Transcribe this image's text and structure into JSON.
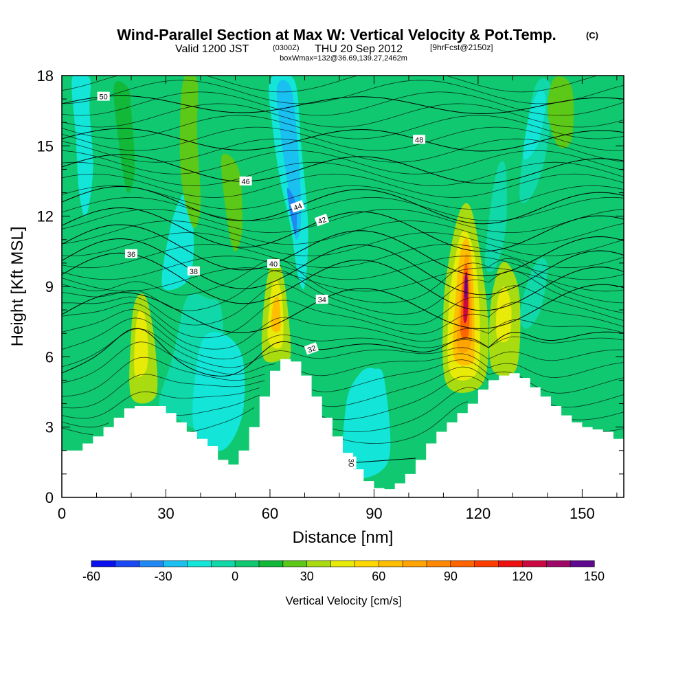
{
  "title": {
    "main": "Wind-Parallel Section at Max W: Vertical Velocity & Pot.Temp.",
    "copyright": "(C)",
    "line2_a": "Valid 1200 JST",
    "line2_b": "(0300Z)",
    "line2_c": "THU 20 Sep 2012",
    "line2_d": "[9hrFcst@2150z]",
    "line3": "boxWmax=132@36.69,139.27,2462m"
  },
  "chart_data": {
    "type": "heatmap",
    "xlabel": "Distance [nm]",
    "ylabel": "Height [Kft MSL]",
    "xlim": [
      0,
      162
    ],
    "ylim": [
      0,
      18
    ],
    "xticks": [
      0,
      30,
      60,
      90,
      120,
      150
    ],
    "yticks": [
      0,
      3,
      6,
      9,
      12,
      15,
      18
    ],
    "colorbar": {
      "label": "Vertical Velocity [cm/s]",
      "ticks": [
        -60,
        -30,
        0,
        30,
        60,
        90,
        120,
        150
      ],
      "levels": [
        -60,
        -50,
        -40,
        -30,
        -20,
        -10,
        0,
        10,
        20,
        30,
        40,
        50,
        60,
        70,
        80,
        90,
        100,
        110,
        120,
        130,
        140,
        150
      ],
      "colors": [
        "#0a10ee",
        "#1a48f5",
        "#1f88f5",
        "#19c0f0",
        "#13e6d8",
        "#10d8a8",
        "#10c870",
        "#12b838",
        "#5cc818",
        "#a8dc10",
        "#e8ea08",
        "#ffd800",
        "#ffbe00",
        "#ffa400",
        "#ff8800",
        "#ff6400",
        "#ff3c00",
        "#ee1010",
        "#cc0840",
        "#a00868",
        "#600890"
      ]
    },
    "terrain": [
      [
        0,
        2
      ],
      [
        3,
        2
      ],
      [
        6,
        2.3
      ],
      [
        9,
        2.6
      ],
      [
        12,
        3
      ],
      [
        15,
        3.4
      ],
      [
        18,
        3.8
      ],
      [
        21,
        3.9
      ],
      [
        24,
        3.9
      ],
      [
        27,
        3.9
      ],
      [
        30,
        3.6
      ],
      [
        33,
        3.2
      ],
      [
        36,
        2.8
      ],
      [
        39,
        2.5
      ],
      [
        42,
        2.2
      ],
      [
        45,
        1.6
      ],
      [
        48,
        1.4
      ],
      [
        51,
        2
      ],
      [
        54,
        3
      ],
      [
        57,
        4.3
      ],
      [
        60,
        5.4
      ],
      [
        63,
        5.9
      ],
      [
        66,
        5.8
      ],
      [
        69,
        5.2
      ],
      [
        72,
        4.3
      ],
      [
        75,
        3.4
      ],
      [
        78,
        2.6
      ],
      [
        81,
        1.9
      ],
      [
        84,
        1.2
      ],
      [
        87,
        0.7
      ],
      [
        90,
        0.4
      ],
      [
        93,
        0.35
      ],
      [
        96,
        0.6
      ],
      [
        99,
        1
      ],
      [
        102,
        1.6
      ],
      [
        105,
        2.3
      ],
      [
        108,
        2.8
      ],
      [
        111,
        3.2
      ],
      [
        114,
        3.6
      ],
      [
        117,
        4
      ],
      [
        120,
        4.6
      ],
      [
        123,
        5
      ],
      [
        126,
        5.2
      ],
      [
        129,
        5.3
      ],
      [
        132,
        5.1
      ],
      [
        135,
        4.7
      ],
      [
        138,
        4.3
      ],
      [
        141,
        3.9
      ],
      [
        144,
        3.5
      ],
      [
        147,
        3.2
      ],
      [
        150,
        3
      ],
      [
        153,
        2.9
      ],
      [
        156,
        2.8
      ],
      [
        159,
        2.5
      ],
      [
        162,
        2.3
      ]
    ],
    "regions": [
      {
        "shape": [
          [
            20,
            4.3
          ],
          [
            20,
            7
          ],
          [
            21,
            8.3
          ],
          [
            23,
            8.7
          ],
          [
            25,
            8.2
          ],
          [
            27,
            6.3
          ],
          [
            27,
            4.3
          ]
        ],
        "w": 30
      },
      {
        "shape": [
          [
            21,
            5.3
          ],
          [
            21.5,
            7.5
          ],
          [
            23,
            8
          ],
          [
            24.5,
            7.3
          ],
          [
            24.5,
            5.5
          ]
        ],
        "w": 45
      },
      {
        "shape": [
          [
            58,
            6
          ],
          [
            58.5,
            8.6
          ],
          [
            61,
            10.2
          ],
          [
            64,
            9.3
          ],
          [
            66,
            6.3
          ],
          [
            64,
            5.9
          ]
        ],
        "w": 30
      },
      {
        "shape": [
          [
            59.5,
            6.7
          ],
          [
            60,
            8.4
          ],
          [
            61.5,
            9.3
          ],
          [
            63.5,
            8.5
          ],
          [
            63.5,
            6.5
          ]
        ],
        "w": 45
      },
      {
        "shape": [
          [
            60.5,
            7.2
          ],
          [
            61,
            8.3
          ],
          [
            62.5,
            8.5
          ],
          [
            63,
            7.2
          ]
        ],
        "w": 60
      },
      {
        "shape": [
          [
            111,
            4.8
          ],
          [
            110,
            8
          ],
          [
            112,
            10.5
          ],
          [
            115,
            12.3
          ],
          [
            118,
            12.3
          ],
          [
            121,
            10
          ],
          [
            123,
            7
          ],
          [
            121,
            4.8
          ]
        ],
        "w": 30
      },
      {
        "shape": [
          [
            112,
            5.3
          ],
          [
            111.5,
            8
          ],
          [
            113.5,
            10.3
          ],
          [
            116,
            11.4
          ],
          [
            119,
            10.3
          ],
          [
            120.5,
            7.5
          ],
          [
            119.5,
            5.3
          ]
        ],
        "w": 45
      },
      {
        "shape": [
          [
            113,
            6
          ],
          [
            113.5,
            8.5
          ],
          [
            115,
            10.5
          ],
          [
            117,
            11
          ],
          [
            118.5,
            9.5
          ],
          [
            119,
            6.5
          ],
          [
            118,
            5.7
          ]
        ],
        "w": 60
      },
      {
        "shape": [
          [
            114,
            6.4
          ],
          [
            115,
            8.8
          ],
          [
            116.5,
            10.4
          ],
          [
            117.8,
            9.5
          ],
          [
            118,
            6.6
          ]
        ],
        "w": 75
      },
      {
        "shape": [
          [
            115,
            7
          ],
          [
            115.6,
            9.2
          ],
          [
            116.6,
            10
          ],
          [
            117.4,
            9
          ],
          [
            117.3,
            7
          ]
        ],
        "w": 95
      },
      {
        "shape": [
          [
            115.8,
            7.6
          ],
          [
            116,
            9.2
          ],
          [
            116.8,
            9.6
          ],
          [
            117.1,
            8.5
          ],
          [
            116.8,
            7.6
          ]
        ],
        "w": 120
      },
      {
        "shape": [
          [
            116.2,
            8.6
          ],
          [
            116.4,
            9.5
          ],
          [
            116.9,
            9.3
          ],
          [
            116.8,
            8.6
          ]
        ],
        "w": 145
      },
      {
        "shape": [
          [
            124,
            5.5
          ],
          [
            123.5,
            8
          ],
          [
            126,
            9.8
          ],
          [
            129,
            9.9
          ],
          [
            132,
            8.5
          ],
          [
            131,
            5.5
          ]
        ],
        "w": 30
      },
      {
        "shape": [
          [
            125.5,
            6.8
          ],
          [
            125.5,
            8.3
          ],
          [
            127.5,
            9
          ],
          [
            129.5,
            8.2
          ],
          [
            129,
            6.8
          ]
        ],
        "w": 45
      },
      {
        "shape": [
          [
            9,
            3
          ],
          [
            8,
            10
          ],
          [
            10,
            13
          ],
          [
            12,
            15
          ],
          [
            15,
            16
          ],
          [
            16,
            13
          ],
          [
            15,
            9
          ],
          [
            13,
            5
          ]
        ],
        "w": 0
      },
      {
        "shape": [
          [
            28,
            4
          ],
          [
            32,
            6
          ],
          [
            36,
            8.5
          ],
          [
            42,
            8.5
          ],
          [
            46,
            8
          ],
          [
            46,
            5
          ],
          [
            40,
            3
          ],
          [
            32,
            3.5
          ]
        ],
        "w": -10
      },
      {
        "shape": [
          [
            38,
            3
          ],
          [
            40,
            6.5
          ],
          [
            46,
            7
          ],
          [
            52,
            6
          ],
          [
            52,
            3.5
          ],
          [
            46,
            2
          ]
        ],
        "w": -20
      },
      {
        "shape": [
          [
            29,
            9
          ],
          [
            31,
            11.3
          ],
          [
            34,
            12.7
          ],
          [
            37,
            13
          ],
          [
            38,
            10.5
          ],
          [
            36,
            9.2
          ]
        ],
        "w": -20
      },
      {
        "shape": [
          [
            60,
            17.8
          ],
          [
            61,
            15.5
          ],
          [
            63,
            13.5
          ],
          [
            66,
            11.5
          ],
          [
            68,
            9.5
          ],
          [
            70,
            9
          ],
          [
            71,
            11.5
          ],
          [
            69,
            15
          ],
          [
            67,
            17.8
          ]
        ],
        "w": -20
      },
      {
        "shape": [
          [
            62,
            17.5
          ],
          [
            63.5,
            15
          ],
          [
            66,
            12.5
          ],
          [
            67.5,
            11
          ],
          [
            69,
            12
          ],
          [
            68,
            15
          ],
          [
            66,
            17.5
          ]
        ],
        "w": -30
      },
      {
        "shape": [
          [
            65,
            13.2
          ],
          [
            66,
            12
          ],
          [
            67.5,
            11.2
          ],
          [
            67.5,
            12.5
          ]
        ],
        "w": -40
      },
      {
        "shape": [
          [
            82,
            1
          ],
          [
            82,
            4
          ],
          [
            86,
            5.3
          ],
          [
            90,
            5.5
          ],
          [
            93,
            5
          ],
          [
            94,
            1.5
          ]
        ],
        "w": -20
      },
      {
        "shape": [
          [
            95,
            5
          ],
          [
            98,
            6.5
          ],
          [
            102,
            6.8
          ],
          [
            105,
            6
          ],
          [
            104,
            4.2
          ],
          [
            99,
            4.2
          ]
        ],
        "w": 0
      },
      {
        "shape": [
          [
            122,
            10
          ],
          [
            124,
            12.8
          ],
          [
            126,
            14.2
          ],
          [
            128,
            14
          ],
          [
            128,
            11.5
          ],
          [
            125,
            9.8
          ]
        ],
        "w": -10
      },
      {
        "shape": [
          [
            132,
            7.8
          ],
          [
            135,
            9.5
          ],
          [
            138,
            10.2
          ],
          [
            140,
            9.8
          ],
          [
            138,
            8
          ],
          [
            134,
            7.2
          ]
        ],
        "w": -10
      },
      {
        "shape": [
          [
            132,
            12.8
          ],
          [
            134,
            15.8
          ],
          [
            137,
            17.7
          ],
          [
            141,
            17.5
          ],
          [
            140,
            15
          ],
          [
            136,
            13
          ]
        ],
        "w": -10
      },
      {
        "shape": [
          [
            133,
            14.5
          ],
          [
            135,
            16.5
          ],
          [
            138,
            17.4
          ],
          [
            139.5,
            16.8
          ],
          [
            137,
            15
          ]
        ],
        "w": -20
      },
      {
        "shape": [
          [
            3,
            17.9
          ],
          [
            4,
            15.5
          ],
          [
            5,
            13
          ],
          [
            7,
            12
          ],
          [
            9,
            14
          ],
          [
            8,
            16.5
          ],
          [
            8,
            17.9
          ]
        ],
        "w": -20
      },
      {
        "shape": [
          [
            15,
            17.5
          ],
          [
            17,
            14.5
          ],
          [
            19,
            13
          ],
          [
            21,
            14
          ],
          [
            20,
            16.5
          ],
          [
            19,
            17.5
          ]
        ],
        "w": 10
      },
      {
        "shape": [
          [
            35,
            17.8
          ],
          [
            34,
            15
          ],
          [
            35,
            13
          ],
          [
            38,
            11.5
          ],
          [
            40,
            12.5
          ],
          [
            39,
            15.5
          ],
          [
            39,
            17.8
          ]
        ],
        "w": 20
      },
      {
        "shape": [
          [
            46,
            14.5
          ],
          [
            48,
            11.5
          ],
          [
            50,
            10.5
          ],
          [
            52,
            11.5
          ],
          [
            51,
            14
          ]
        ],
        "w": 20
      },
      {
        "shape": [
          [
            140,
            16.5
          ],
          [
            143,
            15
          ],
          [
            147,
            15.3
          ],
          [
            147,
            17.5
          ],
          [
            142,
            17.9
          ]
        ],
        "w": 20
      }
    ],
    "contours": [
      {
        "label": "30",
        "start": 0.6,
        "end": 2.3,
        "amp": 0,
        "lab_x": 83.5,
        "lab_angle": 90
      },
      {
        "label": "32",
        "start": 5.3,
        "end": 6.5,
        "amp": 0.6,
        "lab_x": 72,
        "lab_angle": -20
      },
      {
        "label": "34",
        "start": 7.8,
        "end": 8.2,
        "amp": 0.9,
        "lab_x": 75,
        "lab_angle": 0
      },
      {
        "label": "36",
        "start": 9.5,
        "end": 8.8,
        "amp": 1.0,
        "lab_x": 20,
        "lab_angle": 0
      },
      {
        "label": "38",
        "start": 10.1,
        "end": 9.5,
        "amp": 1.0,
        "lab_x": 38,
        "lab_angle": 0
      },
      {
        "label": "40",
        "start": 10.8,
        "end": 10.2,
        "amp": 0.9,
        "lab_x": 61,
        "lab_angle": 0
      },
      {
        "label": "42",
        "start": 11.6,
        "end": 11.2,
        "amp": 0.8,
        "lab_x": 75,
        "lab_angle": -20
      },
      {
        "label": "44",
        "start": 12.6,
        "end": 12.3,
        "amp": 0.7,
        "lab_x": 68,
        "lab_angle": -20
      },
      {
        "label": "46",
        "start": 14.1,
        "end": 13.9,
        "amp": 0.55,
        "lab_x": 53,
        "lab_angle": 0
      },
      {
        "label": "48",
        "start": 15.3,
        "end": 15.2,
        "amp": 0.45,
        "lab_x": 103,
        "lab_angle": 0
      },
      {
        "label": "50",
        "start": 16.8,
        "end": 16.7,
        "amp": 0.35,
        "lab_x": 12,
        "lab_angle": 0
      }
    ]
  }
}
